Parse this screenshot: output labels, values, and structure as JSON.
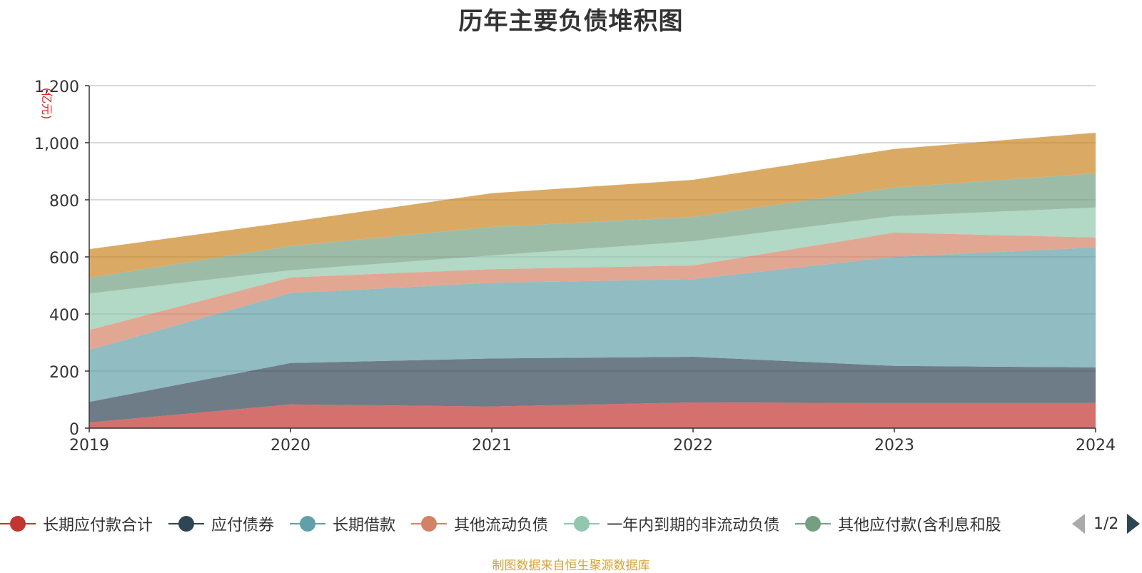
{
  "chart_data": {
    "type": "area",
    "stacked": true,
    "title": "历年主要负债堆积图",
    "unit_label": "(亿元)",
    "categories": [
      "2019",
      "2020",
      "2021",
      "2022",
      "2023",
      "2024"
    ],
    "ylim": [
      0,
      1200
    ],
    "yticks": [
      0,
      200,
      400,
      600,
      800,
      1000,
      1200
    ],
    "ytick_labels": [
      "0",
      "200",
      "400",
      "600",
      "800",
      "1,000",
      "1,200"
    ],
    "grid": true,
    "legend_placement": "bottom",
    "series": [
      {
        "name": "长期应付款合计",
        "color": "#c23531",
        "values": [
          20,
          83,
          76,
          90,
          88,
          88
        ]
      },
      {
        "name": "应付债券",
        "color": "#2f4554",
        "values": [
          72,
          145,
          168,
          160,
          130,
          125
        ]
      },
      {
        "name": "长期借款",
        "color": "#61a0a8",
        "values": [
          182,
          245,
          265,
          272,
          382,
          420
        ]
      },
      {
        "name": "其他流动负债",
        "color": "#d48265",
        "values": [
          70,
          55,
          48,
          48,
          85,
          35
        ]
      },
      {
        "name": "一年内到期的非流动负债",
        "color": "#91c7ae",
        "values": [
          128,
          25,
          48,
          85,
          58,
          105
        ]
      },
      {
        "name": "其他应付款(含利息和股利)",
        "color": "#749f83",
        "values": [
          55,
          85,
          100,
          85,
          100,
          120
        ]
      },
      {
        "name": "",
        "color": "#ca8622",
        "values": [
          100,
          85,
          118,
          130,
          135,
          142
        ]
      }
    ]
  },
  "legend": {
    "items": [
      {
        "label": "长期应付款合计",
        "color": "#c23531"
      },
      {
        "label": "应付债券",
        "color": "#2f4554"
      },
      {
        "label": "长期借款",
        "color": "#61a0a8"
      },
      {
        "label": "其他流动负债",
        "color": "#d48265"
      },
      {
        "label": "一年内到期的非流动负债",
        "color": "#91c7ae"
      },
      {
        "label": "其他应付款(含利息和股",
        "color": "#749f83"
      }
    ],
    "page_indicator": "1/2"
  },
  "footer": "制图数据来自恒生聚源数据库"
}
